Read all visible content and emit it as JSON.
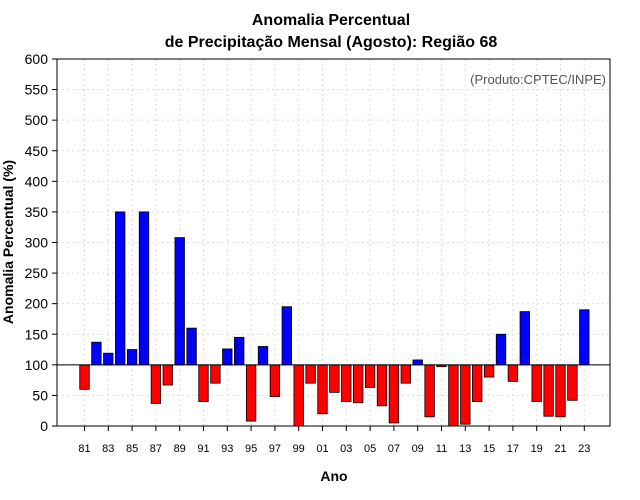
{
  "chart_data": {
    "type": "bar",
    "title_line1": "Anomalia Percentual",
    "title_line2": "de Precipitação Mensal (Agosto): Região 68",
    "xlabel": "Ano",
    "ylabel": "Anomalia Percentual (%)",
    "credit": "(Produto:CPTEC/INPE)",
    "ylim": [
      0,
      600
    ],
    "yticks": [
      0,
      50,
      100,
      150,
      200,
      250,
      300,
      350,
      400,
      450,
      500,
      550,
      600
    ],
    "baseline": 100,
    "grid": true,
    "colors": {
      "above": "#0000ff",
      "below": "#ff0000"
    },
    "categories": [
      "81",
      "82",
      "83",
      "84",
      "85",
      "86",
      "87",
      "88",
      "89",
      "90",
      "91",
      "92",
      "93",
      "94",
      "95",
      "96",
      "97",
      "98",
      "99",
      "00",
      "01",
      "02",
      "03",
      "04",
      "05",
      "06",
      "07",
      "08",
      "09",
      "10",
      "11",
      "12",
      "13",
      "14",
      "15",
      "16",
      "17",
      "18",
      "19",
      "20",
      "21",
      "22",
      "23"
    ],
    "xtick_labels": [
      "81",
      "83",
      "85",
      "87",
      "89",
      "91",
      "93",
      "95",
      "97",
      "99",
      "01",
      "03",
      "05",
      "07",
      "09",
      "11",
      "13",
      "15",
      "17",
      "19",
      "21",
      "23"
    ],
    "values": [
      60,
      137,
      119,
      350,
      125,
      350,
      37,
      67,
      308,
      160,
      40,
      70,
      126,
      145,
      8,
      130,
      48,
      195,
      0,
      70,
      20,
      55,
      40,
      38,
      63,
      33,
      5,
      70,
      108,
      15,
      97,
      0,
      3,
      40,
      80,
      150,
      73,
      187,
      40,
      16,
      15,
      42,
      190
    ]
  }
}
